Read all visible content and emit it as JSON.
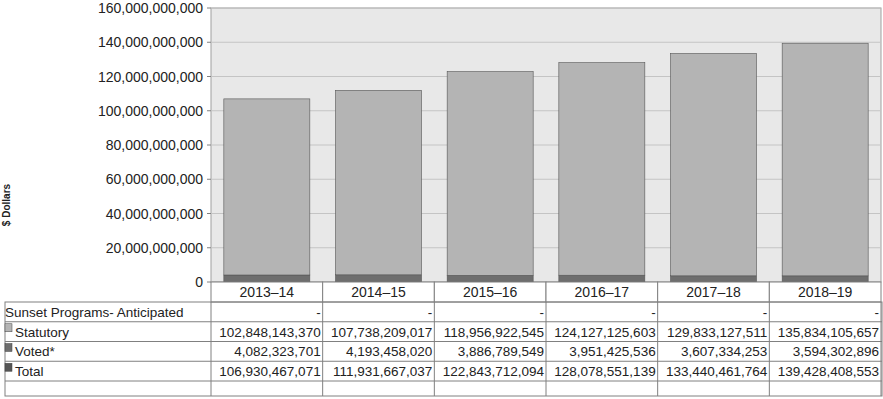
{
  "chart_data": {
    "type": "bar",
    "stacked": true,
    "grid": true,
    "y_label": "$ Dollars",
    "categories": [
      "2013–14",
      "2014–15",
      "2015–16",
      "2016–17",
      "2017–18",
      "2018–19"
    ],
    "series": [
      {
        "name": "Statutory",
        "color": "#b4b4b4",
        "values": [
          102848143370,
          107738209017,
          118956922545,
          124127125603,
          129833127511,
          135834105657
        ],
        "value_labels": [
          "102,848,143,370",
          "107,738,209,017",
          "118,956,922,545",
          "124,127,125,603",
          "129,833,127,511",
          "135,834,105,657"
        ]
      },
      {
        "name": "Voted*",
        "color": "#6e6e6e",
        "values": [
          4082323701,
          4193458020,
          3886789549,
          3951425536,
          3607334253,
          3594302896
        ],
        "value_labels": [
          "4,082,323,701",
          "4,193,458,020",
          "3,886,789,549",
          "3,951,425,536",
          "3,607,334,253",
          "3,594,302,896"
        ]
      }
    ],
    "sunset": {
      "name": "Sunset Programs- Anticipated",
      "values": [
        null,
        null,
        null,
        null,
        null,
        null
      ],
      "value_labels": [
        "-",
        "-",
        "-",
        "-",
        "-",
        "-"
      ]
    },
    "totals": {
      "name": "Total",
      "values": [
        106930467071,
        111931667037,
        122843712094,
        128078551139,
        133440461764,
        139428408553
      ],
      "value_labels": [
        "106,930,467,071",
        "111,931,667,037",
        "122,843,712,094",
        "128,078,551,139",
        "133,440,461,764",
        "139,428,408,553"
      ]
    },
    "ylim": [
      0,
      160000000000
    ],
    "yticks": [
      0,
      {
        "value": 20000000000,
        "label": "20,000,000,000"
      },
      {
        "value": 40000000000,
        "label": "40,000,000,000"
      },
      {
        "value": 60000000000,
        "label": "60,000,000,000"
      },
      {
        "value": 80000000000,
        "label": "80,000,000,000"
      },
      {
        "value": 100000000000,
        "label": "100,000,000,000"
      },
      {
        "value": 120000000000,
        "label": "120,000,000,000"
      },
      {
        "value": 140000000000,
        "label": "140,000,000,000"
      },
      {
        "value": 160000000000,
        "label": "160,000,000,000"
      }
    ]
  }
}
